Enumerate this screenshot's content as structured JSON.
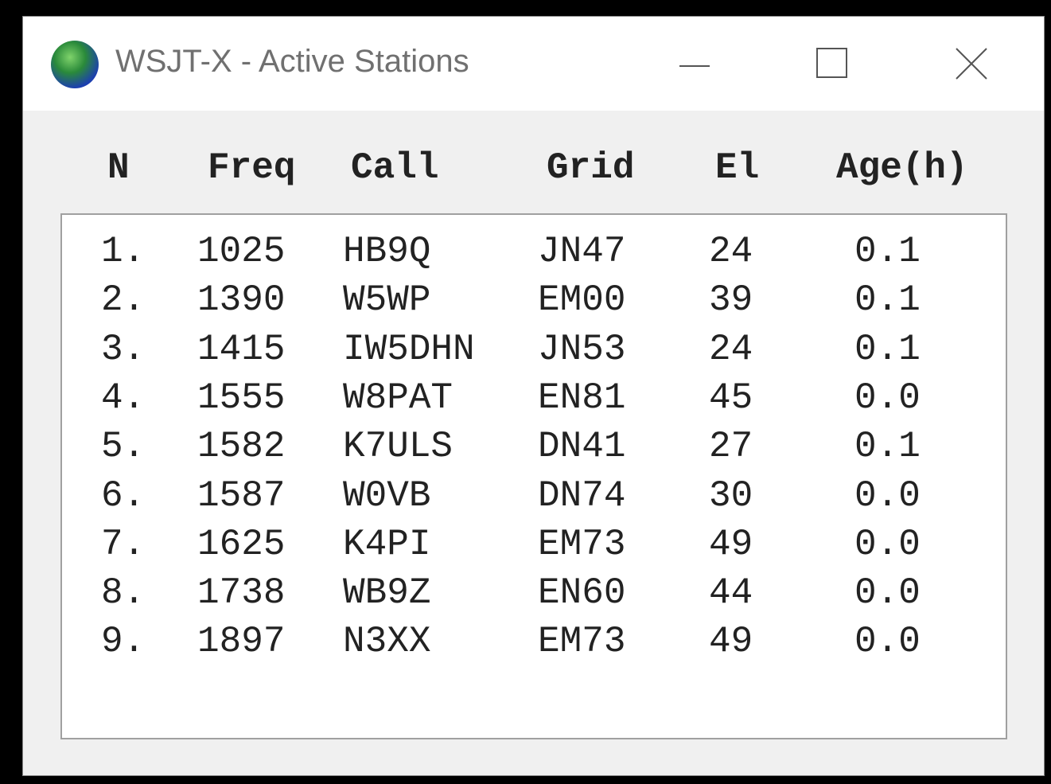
{
  "window": {
    "title": "WSJT-X - Active Stations"
  },
  "table": {
    "columns": [
      "N",
      "Freq",
      "Call",
      "Grid",
      "El",
      "Age(h)"
    ],
    "rows": [
      [
        "1.",
        "1025",
        "HB9Q",
        "JN47",
        "24",
        "0.1"
      ],
      [
        "2.",
        "1390",
        "W5WP",
        "EM00",
        "39",
        "0.1"
      ],
      [
        "3.",
        "1415",
        "IW5DHN",
        "JN53",
        "24",
        "0.1"
      ],
      [
        "4.",
        "1555",
        "W8PAT",
        "EN81",
        "45",
        "0.0"
      ],
      [
        "5.",
        "1582",
        "K7ULS",
        "DN41",
        "27",
        "0.1"
      ],
      [
        "6.",
        "1587",
        "W0VB",
        "DN74",
        "30",
        "0.0"
      ],
      [
        "7.",
        "1625",
        "K4PI",
        "EM73",
        "49",
        "0.0"
      ],
      [
        "8.",
        "1738",
        "WB9Z",
        "EN60",
        "44",
        "0.0"
      ],
      [
        "9.",
        "1897",
        "N3XX",
        "EM73",
        "49",
        "0.0"
      ]
    ]
  }
}
